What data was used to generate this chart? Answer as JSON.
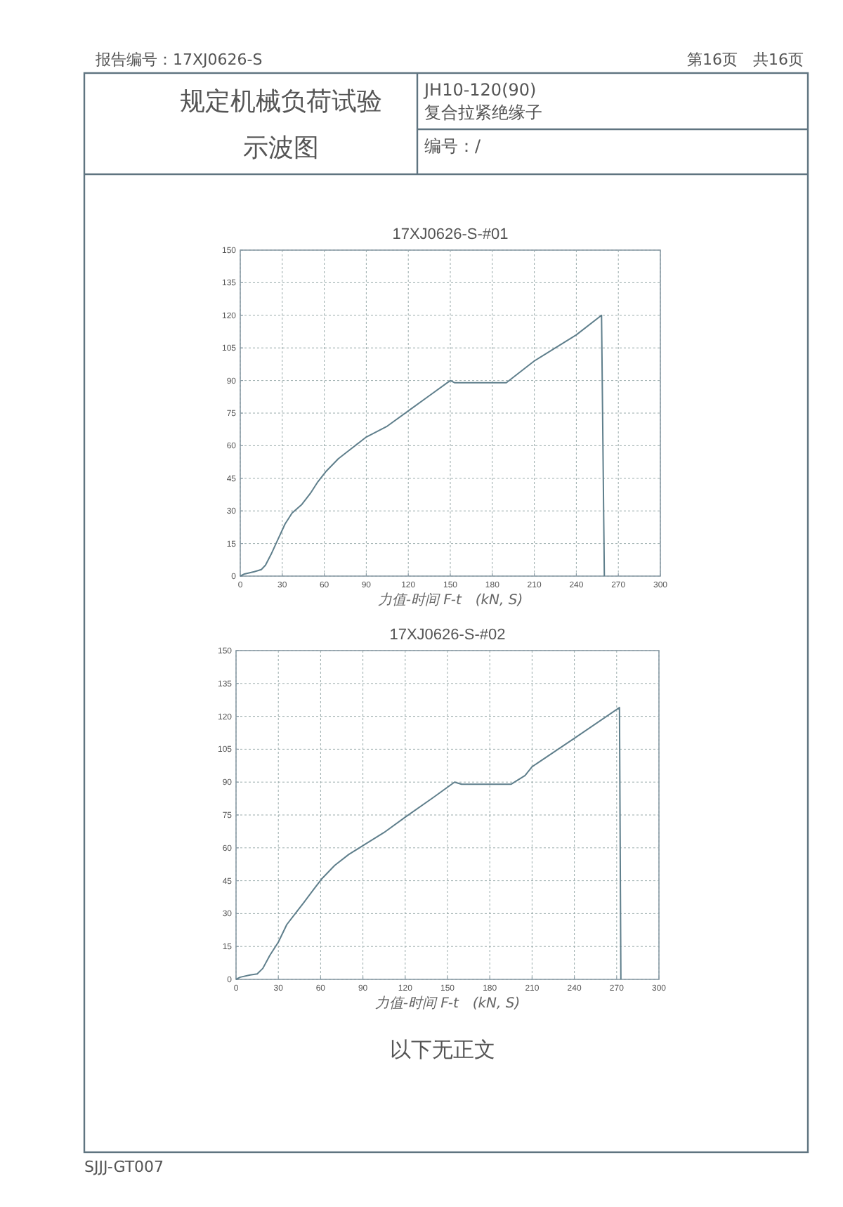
{
  "chart_data": [
    {
      "type": "line",
      "title": "17XJ0626-S-#01",
      "xlabel": "力值-时间 F-t　(kN, S)",
      "xlim": [
        0,
        300
      ],
      "xticks": [
        0,
        30,
        60,
        90,
        120,
        150,
        180,
        210,
        240,
        270,
        300
      ],
      "ylim": [
        0,
        150
      ],
      "yticks": [
        0,
        15,
        30,
        45,
        60,
        75,
        90,
        105,
        120,
        135,
        150
      ],
      "grid": true,
      "annotations": [
        "报告编号：17XJ0626-S",
        "第16页　共16页",
        "规定机械负荷试验",
        "示波图",
        "JH10-120(90)",
        "复合拉紧绝缘子",
        "编号：/"
      ],
      "series": [
        {
          "color": "#5f7f8c",
          "x": [
            0,
            3,
            10,
            15,
            18,
            22,
            27,
            32,
            37,
            44,
            50,
            55,
            61,
            70,
            80,
            90,
            105,
            120,
            135,
            150,
            153,
            170,
            190,
            200,
            210,
            240,
            258,
            259,
            260
          ],
          "values": [
            0,
            1,
            2,
            3,
            5,
            10,
            17,
            24,
            29,
            33,
            38,
            43,
            48,
            54,
            59,
            64,
            69,
            76,
            83,
            90,
            89,
            89,
            89,
            94,
            99,
            111,
            120,
            60,
            0
          ]
        }
      ]
    },
    {
      "type": "line",
      "title": "17XJ0626-S-#02",
      "xlabel": "力值-时间 F-t　(kN, S)",
      "xlim": [
        0,
        300
      ],
      "xticks": [
        0,
        30,
        60,
        90,
        120,
        150,
        180,
        210,
        240,
        270,
        300
      ],
      "ylim": [
        0,
        150
      ],
      "yticks": [
        0,
        15,
        30,
        45,
        60,
        75,
        90,
        105,
        120,
        135,
        150
      ],
      "grid": true,
      "annotations": [
        "以下无正文",
        "SJJJ-GT007"
      ],
      "series": [
        {
          "color": "#5f7f8c",
          "x": [
            0,
            3,
            10,
            15,
            19,
            24,
            30,
            36,
            42,
            48,
            55,
            61,
            70,
            80,
            90,
            105,
            120,
            140,
            155,
            160,
            180,
            195,
            205,
            210,
            240,
            272,
            273
          ],
          "values": [
            0,
            1,
            2,
            2.5,
            5,
            11,
            17,
            25,
            30,
            35,
            41,
            46,
            52,
            57,
            61,
            67,
            74,
            83,
            90,
            89,
            89,
            89,
            93,
            97,
            110,
            124,
            0
          ]
        }
      ]
    }
  ]
}
